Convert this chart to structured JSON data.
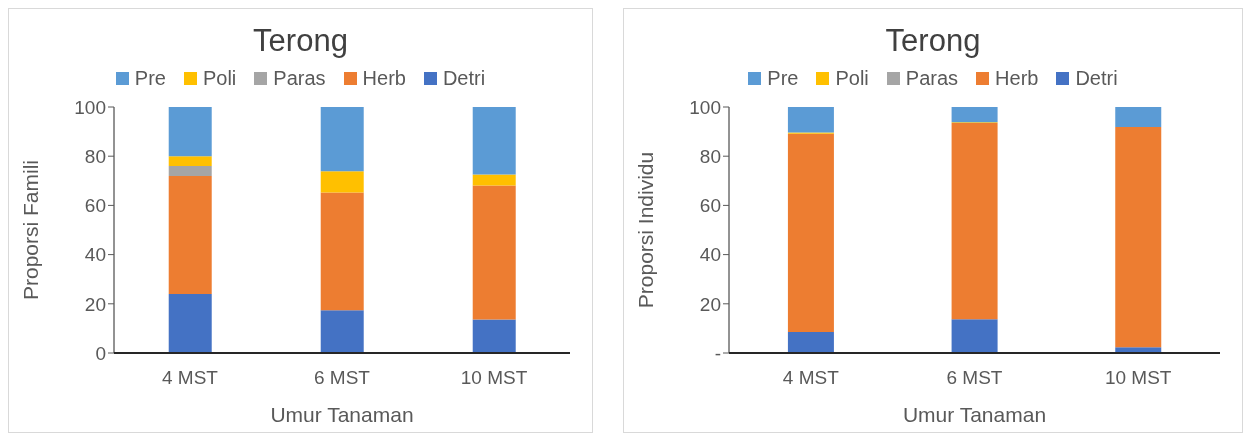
{
  "chart_data": [
    {
      "type": "bar",
      "title": "Terong",
      "xlabel": "Umur Tanaman",
      "ylabel": "Proporsi Famili",
      "categories": [
        "4 MST",
        "6 MST",
        "10 MST"
      ],
      "stacked": true,
      "legend": "top",
      "ylim": [
        0,
        100
      ],
      "yticks": [
        0,
        20,
        40,
        60,
        80,
        100
      ],
      "series": [
        {
          "name": "Detri",
          "color": "#4472c4",
          "values": [
            24,
            17.4,
            13.6
          ]
        },
        {
          "name": "Herb",
          "color": "#ed7d31",
          "values": [
            48,
            47.8,
            54.5
          ]
        },
        {
          "name": "Paras",
          "color": "#a5a5a5",
          "values": [
            4,
            0,
            0
          ]
        },
        {
          "name": "Poli",
          "color": "#ffc000",
          "values": [
            4,
            8.7,
            4.5
          ]
        },
        {
          "name": "Pre",
          "color": "#5b9bd5",
          "values": [
            20,
            26.1,
            27.4
          ]
        }
      ]
    },
    {
      "type": "bar",
      "title": "Terong",
      "xlabel": "Umur Tanaman",
      "ylabel": "Proporsi Individu",
      "categories": [
        "4 MST",
        "6 MST",
        "10 MST"
      ],
      "stacked": true,
      "legend": "top",
      "ylim": [
        0,
        100
      ],
      "yticks": [
        {
          "value": 0,
          "label": "-"
        },
        20,
        40,
        60,
        80,
        100
      ],
      "series": [
        {
          "name": "Detri",
          "color": "#4472c4",
          "values": [
            8.5,
            13.7,
            2.3
          ]
        },
        {
          "name": "Herb",
          "color": "#ed7d31",
          "values": [
            80.6,
            79.8,
            89.6
          ]
        },
        {
          "name": "Paras",
          "color": "#a5a5a5",
          "values": [
            0,
            0,
            null
          ]
        },
        {
          "name": "Poli",
          "color": "#ffc000",
          "values": [
            0.5,
            0.3,
            0
          ]
        },
        {
          "name": "Pre",
          "color": "#5b9bd5",
          "values": [
            10.4,
            6.2,
            8.1
          ]
        }
      ]
    }
  ]
}
